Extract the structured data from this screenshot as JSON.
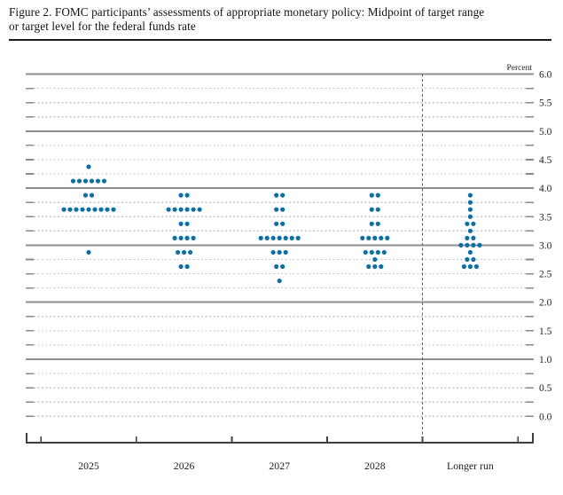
{
  "header": {
    "figure_title_line1": "Figure 2. FOMC participants’ assessments of appropriate monetary policy: Midpoint of target range",
    "figure_title_line2": "or target level for the federal funds rate"
  },
  "chart_data": {
    "type": "scatter",
    "title": "FOMC participants’ assessments of appropriate monetary policy: Midpoint of target range or target level for the federal funds rate",
    "ylabel": "Percent",
    "xlabel": "",
    "ylim": [
      0.0,
      6.0
    ],
    "ytick_step": 0.25,
    "ylabel_step": 0.5,
    "ytick_labels": [
      "6.0",
      "5.5",
      "5.0",
      "4.5",
      "4.0",
      "3.5",
      "3.0",
      "2.5",
      "2.0",
      "1.5",
      "1.0",
      "0.5",
      "0.0"
    ],
    "grid": true,
    "solid_gridlines_at": [
      1.0,
      2.0,
      3.0,
      4.0,
      5.0,
      6.0
    ],
    "legend_position": "none",
    "separator_before_category": "Longer run",
    "categories": [
      "2025",
      "2026",
      "2027",
      "2028",
      "Longer run"
    ],
    "series": [
      {
        "name": "2025",
        "dots": [
          {
            "value": 4.375,
            "count": 1
          },
          {
            "value": 4.125,
            "count": 6
          },
          {
            "value": 3.875,
            "count": 2
          },
          {
            "value": 3.625,
            "count": 9
          },
          {
            "value": 2.875,
            "count": 1
          }
        ]
      },
      {
        "name": "2026",
        "dots": [
          {
            "value": 3.875,
            "count": 2
          },
          {
            "value": 3.625,
            "count": 6
          },
          {
            "value": 3.375,
            "count": 2
          },
          {
            "value": 3.125,
            "count": 4
          },
          {
            "value": 2.875,
            "count": 3
          },
          {
            "value": 2.625,
            "count": 2
          }
        ]
      },
      {
        "name": "2027",
        "dots": [
          {
            "value": 3.875,
            "count": 2
          },
          {
            "value": 3.625,
            "count": 2
          },
          {
            "value": 3.375,
            "count": 2
          },
          {
            "value": 3.125,
            "count": 7
          },
          {
            "value": 2.875,
            "count": 3
          },
          {
            "value": 2.625,
            "count": 2
          },
          {
            "value": 2.375,
            "count": 1
          }
        ]
      },
      {
        "name": "2028",
        "dots": [
          {
            "value": 3.875,
            "count": 2
          },
          {
            "value": 3.625,
            "count": 2
          },
          {
            "value": 3.375,
            "count": 2
          },
          {
            "value": 3.125,
            "count": 5
          },
          {
            "value": 2.875,
            "count": 4
          },
          {
            "value": 2.75,
            "count": 1
          },
          {
            "value": 2.625,
            "count": 3
          }
        ]
      },
      {
        "name": "Longer run",
        "dots": [
          {
            "value": 3.875,
            "count": 1
          },
          {
            "value": 3.75,
            "count": 1
          },
          {
            "value": 3.625,
            "count": 1
          },
          {
            "value": 3.5,
            "count": 1
          },
          {
            "value": 3.375,
            "count": 2
          },
          {
            "value": 3.25,
            "count": 1
          },
          {
            "value": 3.125,
            "count": 2
          },
          {
            "value": 3.0,
            "count": 4
          },
          {
            "value": 2.875,
            "count": 1
          },
          {
            "value": 2.75,
            "count": 2
          },
          {
            "value": 2.625,
            "count": 3
          }
        ]
      }
    ],
    "colors": {
      "dot": "#0e6fa5",
      "solid_gridline": "#8f8f8f",
      "dotted_gridline": "#c4c4c4",
      "axis": "#3f3f3f",
      "text": "#1c1c1c"
    }
  }
}
